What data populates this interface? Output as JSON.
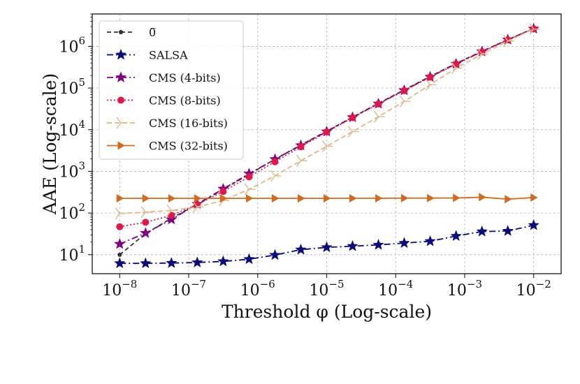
{
  "chart_data": {
    "type": "line",
    "title": "",
    "xlabel": "Threshold φ (Log-scale)",
    "ylabel": "AAE (Log-scale)",
    "xscale": "log",
    "yscale": "log",
    "xlim": [
      4e-09,
      0.025
    ],
    "ylim": [
      3.5,
      6000000
    ],
    "grid": true,
    "legend_position": "top-left",
    "x_ticks": [
      {
        "value": 1e-08,
        "base": "10",
        "exp": "−8"
      },
      {
        "value": 1e-07,
        "base": "10",
        "exp": "−7"
      },
      {
        "value": 1e-06,
        "base": "10",
        "exp": "−6"
      },
      {
        "value": 1e-05,
        "base": "10",
        "exp": "−5"
      },
      {
        "value": 0.0001,
        "base": "10",
        "exp": "−4"
      },
      {
        "value": 0.001,
        "base": "10",
        "exp": "−3"
      },
      {
        "value": 0.01,
        "base": "10",
        "exp": "−2"
      }
    ],
    "y_ticks": [
      {
        "value": 10,
        "base": "10",
        "exp": "1"
      },
      {
        "value": 100,
        "base": "10",
        "exp": "2"
      },
      {
        "value": 1000,
        "base": "10",
        "exp": "3"
      },
      {
        "value": 10000,
        "base": "10",
        "exp": "4"
      },
      {
        "value": 100000,
        "base": "10",
        "exp": "5"
      },
      {
        "value": 1000000,
        "base": "10",
        "exp": "6"
      }
    ],
    "x": [
      1e-08,
      2.37e-08,
      5.62e-08,
      1.33e-07,
      3.16e-07,
      7.5e-07,
      1.78e-06,
      4.22e-06,
      1e-05,
      2.37e-05,
      5.62e-05,
      0.000133,
      0.000316,
      0.00075,
      0.00178,
      0.00422,
      0.01
    ],
    "series": [
      {
        "name": "0̅",
        "color": "#333333",
        "dash": "6 4",
        "marker": "pentagon",
        "values": [
          10,
          32,
          75,
          160,
          370,
          850,
          1950,
          4300,
          9200,
          20000,
          43000,
          90000,
          190000,
          390000,
          760000,
          1450000,
          2700000
        ]
      },
      {
        "name": "SALSA",
        "color": "#0a0a7a",
        "dash": "9 4 2 4",
        "marker": "star",
        "values": [
          6.2,
          6.2,
          6.3,
          6.5,
          6.9,
          7.8,
          9.8,
          13.2,
          15,
          16,
          17.2,
          19,
          21,
          28,
          36,
          37,
          51
        ]
      },
      {
        "name": "CMS (4-bits)",
        "color": "#800080",
        "dash": "9 4 2 4",
        "marker": "star",
        "values": [
          18,
          33,
          70,
          165,
          380,
          880,
          1950,
          4200,
          9000,
          19800,
          42000,
          88000,
          185000,
          380000,
          750000,
          1450000,
          2650000
        ]
      },
      {
        "name": "CMS (8-bits)",
        "color": "#e0184a",
        "dash": "2 3",
        "marker": "circle",
        "values": [
          47,
          60,
          88,
          160,
          330,
          740,
          1700,
          3900,
          8800,
          19500,
          41500,
          87000,
          183000,
          378000,
          740000,
          1430000,
          2630000
        ]
      },
      {
        "name": "CMS (16-bits)",
        "color": "#deb887",
        "dash": "7 4",
        "marker": "tri_right",
        "values": [
          98,
          105,
          115,
          140,
          200,
          370,
          780,
          1800,
          4000,
          9000,
          20500,
          48000,
          120000,
          300000,
          650000,
          1350000,
          2600000
        ]
      },
      {
        "name": "CMS (32-bits)",
        "color": "#d2691e",
        "dash": "",
        "marker": "triangle_right",
        "values": [
          225,
          225,
          225,
          225,
          225,
          225,
          225,
          225,
          225,
          226,
          226,
          228,
          228,
          230,
          240,
          215,
          235
        ]
      }
    ]
  }
}
